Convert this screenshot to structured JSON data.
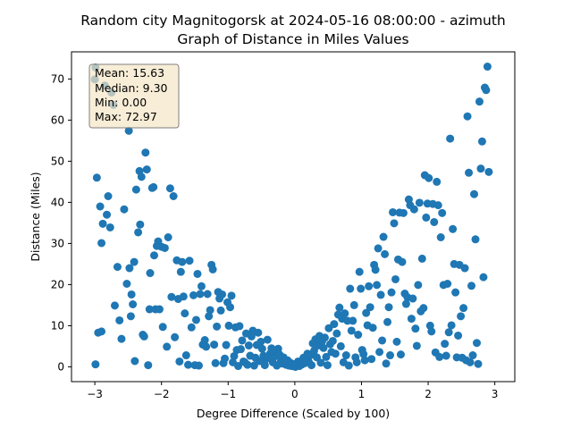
{
  "chart_data": {
    "type": "scatter",
    "title_line1": "Random city Magnitogorsk at 2024-05-16 08:00:00  - azimuth",
    "title_line2": "Graph of Distance in Miles Values",
    "xlabel": "Degree Difference (Scaled by 100)",
    "ylabel": "Distance (Miles)",
    "xlim": [
      -3.35,
      3.3
    ],
    "ylim": [
      -3.6,
      76.6
    ],
    "xticks": [
      -3,
      -2,
      -1,
      0,
      1,
      2,
      3
    ],
    "yticks": [
      0,
      10,
      20,
      30,
      40,
      50,
      60,
      70
    ],
    "marker_color": "#1f77b4",
    "stats_box": {
      "mean": "Mean: 15.63",
      "median": "Median: 9.30",
      "min": "Min: 0.00",
      "max": "Max: 72.97",
      "facecolor": "#f5e6c4",
      "edgecolor": "#808080"
    },
    "points": [
      [
        -2.99,
        72.8
      ],
      [
        -3.0,
        69.9
      ],
      [
        -2.97,
        46.0
      ],
      [
        -2.92,
        39.0
      ],
      [
        -2.88,
        34.8
      ],
      [
        -2.85,
        68.4
      ],
      [
        -2.82,
        37.0
      ],
      [
        -2.8,
        41.5
      ],
      [
        -2.77,
        33.9
      ],
      [
        -2.9,
        30.1
      ],
      [
        -2.99,
        0.6
      ],
      [
        -2.95,
        8.3
      ],
      [
        -2.9,
        8.6
      ],
      [
        -2.75,
        66.7
      ],
      [
        -2.72,
        63.7
      ],
      [
        -2.7,
        14.9
      ],
      [
        -2.66,
        24.3
      ],
      [
        -2.63,
        11.3
      ],
      [
        -2.6,
        6.8
      ],
      [
        -2.56,
        38.3
      ],
      [
        -2.52,
        20.2
      ],
      [
        -2.49,
        57.4
      ],
      [
        -2.48,
        24.0
      ],
      [
        -2.46,
        12.3
      ],
      [
        -2.45,
        17.6
      ],
      [
        -2.43,
        15.2
      ],
      [
        -2.41,
        25.5
      ],
      [
        -2.4,
        1.4
      ],
      [
        -2.38,
        43.1
      ],
      [
        -2.35,
        32.7
      ],
      [
        -2.33,
        47.6
      ],
      [
        -2.32,
        34.6
      ],
      [
        -2.3,
        46.2
      ],
      [
        -2.28,
        7.8
      ],
      [
        -2.26,
        7.4
      ],
      [
        -2.24,
        52.1
      ],
      [
        -2.22,
        48.0
      ],
      [
        -2.2,
        0.4
      ],
      [
        -2.18,
        14.0
      ],
      [
        -2.17,
        22.8
      ],
      [
        -2.14,
        43.5
      ],
      [
        -2.12,
        43.7
      ],
      [
        -2.11,
        27.1
      ],
      [
        -2.09,
        14.0
      ],
      [
        -2.07,
        29.4
      ],
      [
        -2.05,
        30.5
      ],
      [
        -2.03,
        14.0
      ],
      [
        -2.0,
        29.2
      ],
      [
        -1.98,
        9.7
      ],
      [
        -1.95,
        28.9
      ],
      [
        -1.92,
        4.9
      ],
      [
        -1.9,
        31.5
      ],
      [
        -1.87,
        43.4
      ],
      [
        -1.85,
        17.0
      ],
      [
        -1.82,
        41.5
      ],
      [
        -1.8,
        7.2
      ],
      [
        -1.77,
        25.9
      ],
      [
        -1.75,
        16.5
      ],
      [
        -1.73,
        1.3
      ],
      [
        -1.71,
        23.1
      ],
      [
        -1.69,
        25.5
      ],
      [
        -1.67,
        17.1
      ],
      [
        -1.65,
        13.0
      ],
      [
        -1.63,
        2.8
      ],
      [
        -1.6,
        0.5
      ],
      [
        -1.58,
        25.8
      ],
      [
        -1.55,
        9.6
      ],
      [
        -1.52,
        17.4
      ],
      [
        -1.5,
        0.4
      ],
      [
        -1.48,
        11.4
      ],
      [
        -1.46,
        22.6
      ],
      [
        -1.44,
        0.3
      ],
      [
        -1.42,
        17.7
      ],
      [
        -1.4,
        19.6
      ],
      [
        -1.38,
        5.4
      ],
      [
        -1.35,
        6.5
      ],
      [
        -1.33,
        4.9
      ],
      [
        -1.31,
        17.7
      ],
      [
        -1.29,
        12.3
      ],
      [
        -1.27,
        13.8
      ],
      [
        -1.25,
        24.8
      ],
      [
        -1.23,
        23.7
      ],
      [
        -1.21,
        5.4
      ],
      [
        -1.19,
        0.9
      ],
      [
        -1.17,
        9.8
      ],
      [
        -1.15,
        18.2
      ],
      [
        -1.13,
        16.6
      ],
      [
        -1.11,
        13.7
      ],
      [
        -1.09,
        17.6
      ],
      [
        -1.07,
        0.9
      ],
      [
        -1.05,
        2.0
      ],
      [
        -1.03,
        5.3
      ],
      [
        -1.01,
        15.7
      ],
      [
        -0.99,
        10.0
      ],
      [
        -0.97,
        14.5
      ],
      [
        -0.95,
        17.3
      ],
      [
        -0.93,
        1.1
      ],
      [
        -0.91,
        2.6
      ],
      [
        -0.89,
        9.6
      ],
      [
        -0.87,
        4.1
      ],
      [
        -0.85,
        0.2
      ],
      [
        -0.83,
        9.9
      ],
      [
        -0.81,
        4.3
      ],
      [
        -0.79,
        6.4
      ],
      [
        -0.77,
        1.3
      ],
      [
        -0.75,
        1.1
      ],
      [
        -0.73,
        8.1
      ],
      [
        -0.71,
        0.5
      ],
      [
        -0.69,
        5.2
      ],
      [
        -0.67,
        2.7
      ],
      [
        -0.65,
        7.4
      ],
      [
        -0.63,
        8.8
      ],
      [
        -0.61,
        0.3
      ],
      [
        -0.59,
        2.2
      ],
      [
        -0.57,
        5.3
      ],
      [
        -0.55,
        8.3
      ],
      [
        -0.53,
        1.4
      ],
      [
        -0.51,
        6.1
      ],
      [
        -0.49,
        4.4
      ],
      [
        -0.47,
        2.7
      ],
      [
        -0.45,
        0.4
      ],
      [
        -0.43,
        1.9
      ],
      [
        -0.41,
        6.6
      ],
      [
        -0.39,
        2.4
      ],
      [
        -0.37,
        3.2
      ],
      [
        -0.35,
        4.5
      ],
      [
        -0.33,
        1.1
      ],
      [
        -0.31,
        3.4
      ],
      [
        -0.29,
        2.6
      ],
      [
        -0.27,
        0.3
      ],
      [
        -0.25,
        4.4
      ],
      [
        -0.23,
        3.0
      ],
      [
        -0.21,
        1.3
      ],
      [
        -0.19,
        0.8
      ],
      [
        -0.17,
        2.3
      ],
      [
        -0.15,
        1.5
      ],
      [
        -0.13,
        0.5
      ],
      [
        -0.11,
        1.6
      ],
      [
        -0.09,
        0.3
      ],
      [
        -0.07,
        1.0
      ],
      [
        -0.05,
        0.2
      ],
      [
        -0.03,
        0.7
      ],
      [
        -0.01,
        0.1
      ],
      [
        0.01,
        0.0
      ],
      [
        0.03,
        0.5
      ],
      [
        0.05,
        1.3
      ],
      [
        0.07,
        0.2
      ],
      [
        0.09,
        1.0
      ],
      [
        0.11,
        0.6
      ],
      [
        0.13,
        2.2
      ],
      [
        0.15,
        0.9
      ],
      [
        0.17,
        1.8
      ],
      [
        0.19,
        3.2
      ],
      [
        0.21,
        1.2
      ],
      [
        0.23,
        2.8
      ],
      [
        0.25,
        0.4
      ],
      [
        0.27,
        5.7
      ],
      [
        0.29,
        3.9
      ],
      [
        0.31,
        6.7
      ],
      [
        0.33,
        2.3
      ],
      [
        0.35,
        5.2
      ],
      [
        0.37,
        7.5
      ],
      [
        0.39,
        1.0
      ],
      [
        0.41,
        6.2
      ],
      [
        0.43,
        4.6
      ],
      [
        0.45,
        7.1
      ],
      [
        0.47,
        2.4
      ],
      [
        0.49,
        0.4
      ],
      [
        0.51,
        9.4
      ],
      [
        0.53,
        5.5
      ],
      [
        0.55,
        3.6
      ],
      [
        0.57,
        6.3
      ],
      [
        0.59,
        10.4
      ],
      [
        0.61,
        3.2
      ],
      [
        0.63,
        8.1
      ],
      [
        0.65,
        12.7
      ],
      [
        0.67,
        14.4
      ],
      [
        0.69,
        5.0
      ],
      [
        0.71,
        11.7
      ],
      [
        0.73,
        1.1
      ],
      [
        0.75,
        13.0
      ],
      [
        0.77,
        2.8
      ],
      [
        0.79,
        11.2
      ],
      [
        0.81,
        0.3
      ],
      [
        0.83,
        19.0
      ],
      [
        0.85,
        8.8
      ],
      [
        0.87,
        11.2
      ],
      [
        0.89,
        15.0
      ],
      [
        0.91,
        2.3
      ],
      [
        0.93,
        1.1
      ],
      [
        0.95,
        7.8
      ],
      [
        0.97,
        23.1
      ],
      [
        0.99,
        19.0
      ],
      [
        1.01,
        4.1
      ],
      [
        1.03,
        3.1
      ],
      [
        1.05,
        1.6
      ],
      [
        1.07,
        13.1
      ],
      [
        1.09,
        10.1
      ],
      [
        1.11,
        19.6
      ],
      [
        1.13,
        14.5
      ],
      [
        1.15,
        1.9
      ],
      [
        1.17,
        9.5
      ],
      [
        1.19,
        24.8
      ],
      [
        1.21,
        23.6
      ],
      [
        1.23,
        19.9
      ],
      [
        1.25,
        28.8
      ],
      [
        1.27,
        3.6
      ],
      [
        1.29,
        17.5
      ],
      [
        1.31,
        6.4
      ],
      [
        1.33,
        31.6
      ],
      [
        1.35,
        27.4
      ],
      [
        1.37,
        0.8
      ],
      [
        1.39,
        10.9
      ],
      [
        1.41,
        14.5
      ],
      [
        1.43,
        2.8
      ],
      [
        1.45,
        18.1
      ],
      [
        1.47,
        37.6
      ],
      [
        1.49,
        34.9
      ],
      [
        1.51,
        21.3
      ],
      [
        1.53,
        6.1
      ],
      [
        1.55,
        26.1
      ],
      [
        1.57,
        37.5
      ],
      [
        1.59,
        3.0
      ],
      [
        1.61,
        25.5
      ],
      [
        1.63,
        37.4
      ],
      [
        1.65,
        17.8
      ],
      [
        1.67,
        15.3
      ],
      [
        1.69,
        16.9
      ],
      [
        1.71,
        40.7
      ],
      [
        1.73,
        39.3
      ],
      [
        1.75,
        11.7
      ],
      [
        1.77,
        16.6
      ],
      [
        1.79,
        38.3
      ],
      [
        1.81,
        9.3
      ],
      [
        1.83,
        5.1
      ],
      [
        1.85,
        19.9
      ],
      [
        1.87,
        39.9
      ],
      [
        1.89,
        13.5
      ],
      [
        1.91,
        26.3
      ],
      [
        1.93,
        14.3
      ],
      [
        1.95,
        46.6
      ],
      [
        1.97,
        36.3
      ],
      [
        1.99,
        39.7
      ],
      [
        2.01,
        45.9
      ],
      [
        2.03,
        10.0
      ],
      [
        2.05,
        8.6
      ],
      [
        2.07,
        39.6
      ],
      [
        2.09,
        35.2
      ],
      [
        2.11,
        3.5
      ],
      [
        2.13,
        45.0
      ],
      [
        2.15,
        39.3
      ],
      [
        2.17,
        2.4
      ],
      [
        2.19,
        31.5
      ],
      [
        2.21,
        37.4
      ],
      [
        2.23,
        19.9
      ],
      [
        2.25,
        5.6
      ],
      [
        2.27,
        2.7
      ],
      [
        2.29,
        20.2
      ],
      [
        2.31,
        8.4
      ],
      [
        2.33,
        55.5
      ],
      [
        2.35,
        10.1
      ],
      [
        2.37,
        33.5
      ],
      [
        2.39,
        25.0
      ],
      [
        2.41,
        18.1
      ],
      [
        2.43,
        2.3
      ],
      [
        2.45,
        7.6
      ],
      [
        2.47,
        24.8
      ],
      [
        2.49,
        12.3
      ],
      [
        2.51,
        2.2
      ],
      [
        2.53,
        14.3
      ],
      [
        2.55,
        24.0
      ],
      [
        2.57,
        1.6
      ],
      [
        2.59,
        60.9
      ],
      [
        2.61,
        47.2
      ],
      [
        2.63,
        1.1
      ],
      [
        2.65,
        19.7
      ],
      [
        2.67,
        2.8
      ],
      [
        2.69,
        42.0
      ],
      [
        2.71,
        31.0
      ],
      [
        2.73,
        5.8
      ],
      [
        2.75,
        0.7
      ],
      [
        2.77,
        64.5
      ],
      [
        2.79,
        48.2
      ],
      [
        2.81,
        54.8
      ],
      [
        2.83,
        21.8
      ],
      [
        2.85,
        67.9
      ],
      [
        2.87,
        67.3
      ],
      [
        2.89,
        73.0
      ],
      [
        2.91,
        47.4
      ]
    ]
  }
}
